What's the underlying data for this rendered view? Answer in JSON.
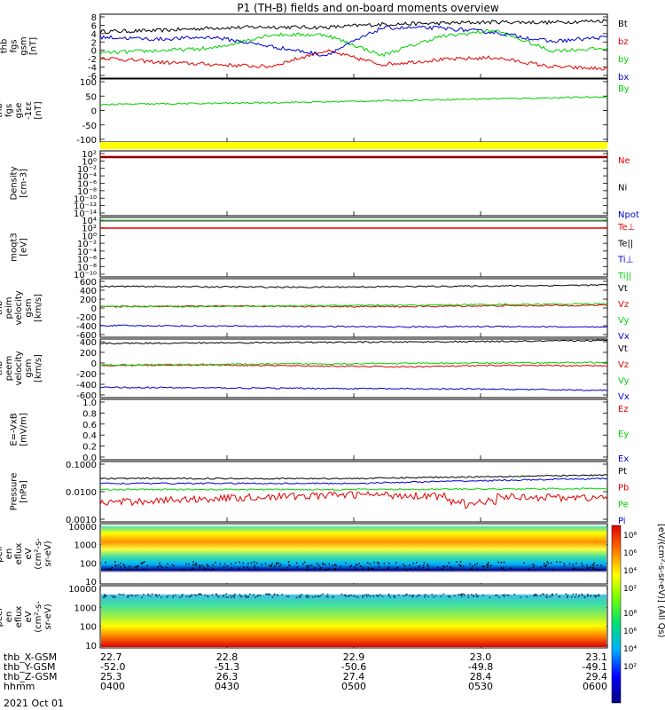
{
  "title": "P1  (TH-B) fields and on-board moments overview",
  "colors": {
    "black": "#000000",
    "red": "#e00000",
    "green": "#00d000",
    "blue": "#0000d0",
    "cyan": "#00b0b0",
    "yellow": "#ffff00"
  },
  "colorbar": {
    "labels": [
      "10⁸",
      "10⁶",
      "10⁴",
      "10²"
    ],
    "title": "[eV/(cm²-s-sr-eV)] (All Qs)"
  },
  "footer": {
    "rows": [
      {
        "label": "thb_X-GSM",
        "values": [
          "22.7",
          "22.8",
          "22.9",
          "23.0",
          "23.1"
        ]
      },
      {
        "label": "thb_Y-GSM",
        "values": [
          "-52.0",
          "-51.3",
          "-50.6",
          "-49.8",
          "-49.1"
        ]
      },
      {
        "label": "thb_Z-GSM",
        "values": [
          "25.3",
          "26.3",
          "27.4",
          "28.4",
          "29.4"
        ]
      },
      {
        "label": "hhmm",
        "values": [
          "0400",
          "0430",
          "0500",
          "0530",
          "0600"
        ]
      }
    ],
    "date": "2021 Oct 01"
  },
  "chart_data": [
    {
      "type": "line",
      "ylabel": [
        "thb",
        "fgs",
        "gsm",
        "[nT]"
      ],
      "yticks": [
        "8",
        "6",
        "4",
        "2",
        "0",
        "-2",
        "-4",
        "-6"
      ],
      "ylim": [
        -6,
        8
      ],
      "series": [
        {
          "name": "Bt",
          "color": "black",
          "values": [
            4.2,
            4.4,
            5.0,
            5.2,
            5.1,
            5.8,
            6.0,
            6.3,
            6.2,
            6.6
          ]
        },
        {
          "name": "bz",
          "color": "red",
          "values": [
            -1.5,
            -2.5,
            -3.0,
            -3.5,
            0,
            -3.0,
            -2.0,
            -1.5,
            -3.5,
            -4.0
          ]
        },
        {
          "name": "by",
          "color": "green",
          "values": [
            -0.5,
            0,
            0.5,
            3.5,
            3.5,
            -1.0,
            3.0,
            4.5,
            0,
            0.5
          ]
        },
        {
          "name": "bx",
          "color": "blue",
          "values": [
            3.0,
            2.5,
            3.0,
            1.0,
            -1.0,
            5.0,
            5.0,
            4.0,
            2.0,
            3.0
          ]
        }
      ]
    },
    {
      "type": "line",
      "ylabel": [
        "thb",
        "fgs",
        "gse",
        "-1εε",
        "[nT]"
      ],
      "yticks": [
        "100",
        "50",
        "0",
        "-50",
        "-100"
      ],
      "ylim": [
        -125,
        115
      ],
      "series": [
        {
          "name": "By",
          "color": "green",
          "values": [
            18,
            20,
            22,
            25,
            28,
            32,
            36,
            40,
            43,
            47
          ]
        }
      ]
    },
    {
      "type": "line",
      "ylabel": [
        "Density",
        "[cm-3]"
      ],
      "yticks": [
        "10²",
        "10⁰",
        "10⁻²",
        "10⁻⁴",
        "10⁻⁶",
        "10⁻⁸",
        "10⁻¹⁰",
        "10⁻¹²",
        "10⁻¹⁴"
      ],
      "series": [
        {
          "name": "Ne",
          "color": "red",
          "values": [
            0.1,
            0.1,
            0.1,
            0.1
          ]
        },
        {
          "name": "Ni",
          "color": "black",
          "values": [
            0.1,
            0.1,
            0.1,
            0.1
          ]
        },
        {
          "name": "Npot",
          "color": "blue",
          "values": [
            0.1,
            0.1,
            0.1,
            0.1
          ]
        }
      ]
    },
    {
      "type": "line",
      "ylabel": [
        "moqt3",
        "[eV]"
      ],
      "yticks": [
        "10⁴",
        "10²",
        "10⁰",
        "10⁻²",
        "10⁻⁴",
        "10⁻⁶",
        "10⁻⁸",
        "10⁻¹⁰"
      ],
      "series": [
        {
          "name": "Te⊥",
          "color": "red"
        },
        {
          "name": "Te||",
          "color": "black"
        },
        {
          "name": "Ti⊥",
          "color": "blue"
        },
        {
          "name": "Ti||",
          "color": "green"
        }
      ]
    },
    {
      "type": "line",
      "ylabel": [
        "thb",
        "peim",
        "velocity",
        "gsm",
        "[km/s]"
      ],
      "yticks": [
        "600",
        "400",
        "200",
        "0",
        "-200",
        "-400",
        "-600"
      ],
      "ylim": [
        -680,
        620
      ],
      "series": [
        {
          "name": "Vt",
          "color": "black",
          "values": [
            450,
            440,
            430,
            445,
            460,
            480
          ]
        },
        {
          "name": "Vz",
          "color": "red",
          "values": [
            0,
            10,
            5,
            0,
            20,
            30
          ]
        },
        {
          "name": "Vy",
          "color": "green",
          "values": [
            10,
            0,
            20,
            30,
            50,
            60
          ]
        },
        {
          "name": "Vx",
          "color": "blue",
          "values": [
            -420,
            -430,
            -440,
            -450,
            -440,
            -460
          ]
        }
      ]
    },
    {
      "type": "line",
      "ylabel": [
        "thb",
        "peem",
        "velocity",
        "gsm",
        "[km/s]"
      ],
      "yticks": [
        "400",
        "200",
        "0",
        "-200",
        "-400",
        "-600"
      ],
      "ylim": [
        -650,
        550
      ],
      "series": [
        {
          "name": "Vt",
          "color": "black",
          "values": [
            460,
            470,
            480,
            490,
            500,
            520
          ]
        },
        {
          "name": "Vz",
          "color": "red",
          "values": [
            10,
            20,
            0,
            -20,
            10,
            0
          ]
        },
        {
          "name": "Vy",
          "color": "green",
          "values": [
            20,
            30,
            40,
            50,
            60,
            70
          ]
        },
        {
          "name": "Vx",
          "color": "blue",
          "values": [
            -440,
            -450,
            -460,
            -470,
            -480,
            -500
          ]
        }
      ]
    },
    {
      "type": "line",
      "ylabel": [
        "E=-VxB",
        "[mV/m]"
      ],
      "yticks": [
        "1.0",
        "0.8",
        "0.6",
        "0.4",
        "0.2",
        "0.0"
      ],
      "ylim": [
        0,
        1
      ],
      "series": [
        {
          "name": "Ez",
          "color": "red"
        },
        {
          "name": "Ey",
          "color": "green"
        },
        {
          "name": "Ex",
          "color": "blue"
        }
      ]
    },
    {
      "type": "line",
      "ylabel": [
        "Pressure",
        "[nPa]"
      ],
      "yticks": [
        "0.1000",
        "0.0100",
        "0.0010"
      ],
      "series": [
        {
          "name": "Pt",
          "color": "black",
          "values": [
            0.03,
            0.03,
            0.04
          ]
        },
        {
          "name": "Pb",
          "color": "red",
          "values": [
            0.004,
            0.008,
            0.006
          ]
        },
        {
          "name": "Pe",
          "color": "green",
          "values": [
            0.012,
            0.012,
            0.013
          ]
        },
        {
          "name": "Pi",
          "color": "blue",
          "values": [
            0.02,
            0.02,
            0.03
          ]
        }
      ]
    },
    {
      "type": "heatmap",
      "ylabel": [
        "thb",
        "peir",
        "en",
        "eflux",
        "eV",
        "(cm²-s-",
        "sr-eV)"
      ],
      "yticks": [
        "10000",
        "1000",
        "100",
        "10"
      ]
    },
    {
      "type": "heatmap",
      "ylabel": [
        "thb",
        "peer",
        "en",
        "eflux",
        "eV",
        "(cm²-s-",
        "sr-eV)"
      ],
      "yticks": [
        "10000",
        "1000",
        "100",
        "10"
      ]
    }
  ]
}
